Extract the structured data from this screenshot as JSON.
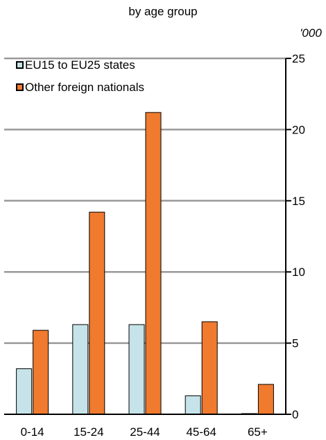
{
  "title_fragment": "by age group",
  "unit_label": "'000",
  "chart_data": {
    "type": "bar",
    "categories": [
      "0-14",
      "15-24",
      "25-44",
      "45-64",
      "65+"
    ],
    "series": [
      {
        "name": "EU15 to EU25 states",
        "values": [
          3.2,
          6.3,
          6.3,
          1.3,
          0.05
        ],
        "color": "#c5e3e8"
      },
      {
        "name": "Other foreign nationals",
        "values": [
          5.9,
          14.2,
          21.2,
          6.5,
          2.1
        ],
        "color": "#f07a2e"
      }
    ],
    "yticks": [
      0,
      5,
      10,
      15,
      20,
      25
    ],
    "ylim": [
      0,
      25
    ],
    "y_axis_side": "right",
    "grid": true,
    "legend_position": "top-left"
  }
}
